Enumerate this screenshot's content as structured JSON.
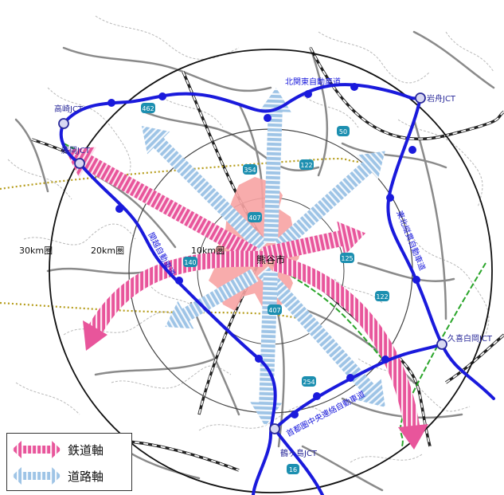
{
  "rings": [
    {
      "label": "10km圏"
    },
    {
      "label": "20km圏"
    },
    {
      "label": "30km圏"
    }
  ],
  "city": {
    "label": "熊谷市"
  },
  "junctions": [
    {
      "id": "takasaki",
      "label": "高崎JCT"
    },
    {
      "id": "fujioka",
      "label": "藤岡JCT"
    },
    {
      "id": "iwafune",
      "label": "岩舟JCT"
    },
    {
      "id": "kuki",
      "label": "久喜白岡JCT"
    },
    {
      "id": "tsurugashima",
      "label": "鶴ヶ島JCT"
    }
  ],
  "expressways": [
    {
      "id": "kitakanto",
      "label": "北関東自動車道"
    },
    {
      "id": "kanetsu",
      "label": "関越自動車道"
    },
    {
      "id": "tohoku",
      "label": "東北縦貫自動車道"
    },
    {
      "id": "kenodo",
      "label": "首都圏中央連絡自動車道"
    }
  ],
  "route_shields": [
    "462",
    "354",
    "122",
    "50",
    "407",
    "140",
    "125",
    "122",
    "407",
    "254",
    "16"
  ],
  "legend": {
    "rail": {
      "label": "鉄道軸",
      "icon": "pink-double-arrow"
    },
    "road": {
      "label": "道路軸",
      "icon": "blue-double-arrow"
    }
  },
  "colors": {
    "rail_axis": "#e8559b",
    "road_axis": "#9ec4e6",
    "expressway": "#1a1adc",
    "city_area": "#f7a3a3",
    "rail_green": "#2aa52a"
  }
}
